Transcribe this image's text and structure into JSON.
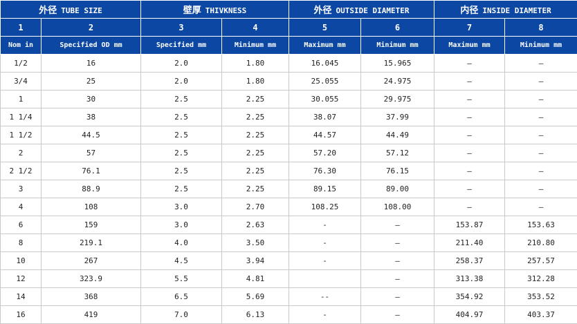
{
  "groups": [
    {
      "cn": "外径",
      "en": "TUBE SIZE"
    },
    {
      "cn": "壁厚",
      "en": "THIVKNESS"
    },
    {
      "cn": "外径",
      "en": "OUTSIDE DIAMETER"
    },
    {
      "cn": "内径",
      "en": "INSIDE DIAMETER"
    }
  ],
  "column_numbers": [
    "1",
    "2",
    "3",
    "4",
    "5",
    "6",
    "7",
    "8"
  ],
  "column_labels": [
    "Nom in",
    "Specified OD mm",
    "Specified mm",
    "Minimum mm",
    "Maximum mm",
    "Minimum mm",
    "Maximum mm",
    "Minimum mm"
  ],
  "rows": [
    [
      "1/2",
      "16",
      "2.0",
      "1.80",
      "16.045",
      "15.965",
      "—",
      "—"
    ],
    [
      "3/4",
      "25",
      "2.0",
      "1.80",
      "25.055",
      "24.975",
      "—",
      "—"
    ],
    [
      "1",
      "30",
      "2.5",
      "2.25",
      "30.055",
      "29.975",
      "—",
      "—"
    ],
    [
      "1 1/4",
      "38",
      "2.5",
      "2.25",
      "38.07",
      "37.99",
      "—",
      "—"
    ],
    [
      "1 1/2",
      "44.5",
      "2.5",
      "2.25",
      "44.57",
      "44.49",
      "—",
      "—"
    ],
    [
      "2",
      "57",
      "2.5",
      "2.25",
      "57.20",
      "57.12",
      "—",
      "—"
    ],
    [
      "2 1/2",
      "76.1",
      "2.5",
      "2.25",
      "76.30",
      "76.15",
      "—",
      "—"
    ],
    [
      "3",
      "88.9",
      "2.5",
      "2.25",
      "89.15",
      "89.00",
      "—",
      "—"
    ],
    [
      "4",
      "108",
      "3.0",
      "2.70",
      "108.25",
      "108.00",
      "—",
      "—"
    ],
    [
      "6",
      "159",
      "3.0",
      "2.63",
      "-",
      "—",
      "153.87",
      "153.63"
    ],
    [
      "8",
      "219.1",
      "4.0",
      "3.50",
      "-",
      "—",
      "211.40",
      "210.80"
    ],
    [
      "10",
      "267",
      "4.5",
      "3.94",
      "-",
      "—",
      "258.37",
      "257.57"
    ],
    [
      "12",
      "323.9",
      "5.5",
      "4.81",
      "",
      "—",
      "313.38",
      "312.28"
    ],
    [
      "14",
      "368",
      "6.5",
      "5.69",
      "--",
      "—",
      "354.92",
      "353.52"
    ],
    [
      "16",
      "419",
      "7.0",
      "6.13",
      "-",
      "—",
      "404.97",
      "403.37"
    ]
  ]
}
